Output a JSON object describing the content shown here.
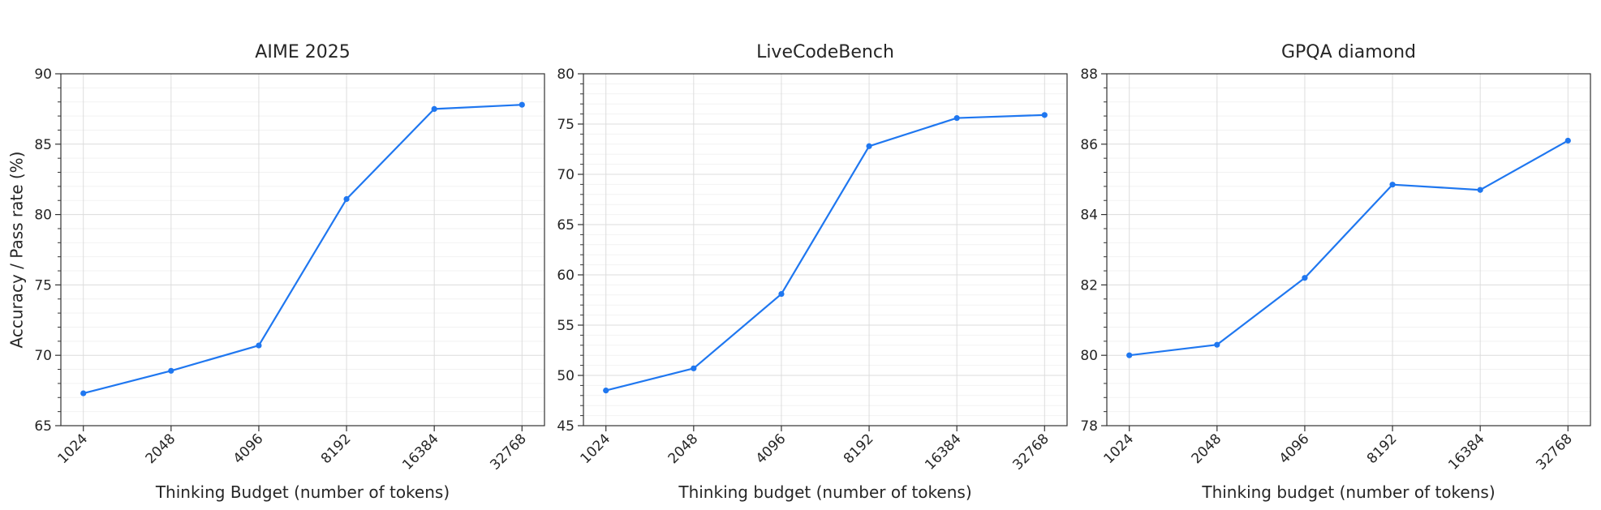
{
  "chart_data": [
    {
      "type": "line",
      "title": "AIME 2025",
      "xlabel": "Thinking Budget (number of tokens)",
      "ylabel": "Accuracy / Pass rate (%)",
      "categories": [
        "1024",
        "2048",
        "4096",
        "8192",
        "16384",
        "32768"
      ],
      "values": [
        67.3,
        68.9,
        70.7,
        81.1,
        87.5,
        87.8
      ],
      "ylim": [
        65,
        90
      ],
      "yticks": [
        "65",
        "70",
        "75",
        "80",
        "85",
        "90"
      ],
      "grid": true,
      "color": "#1f77f0"
    },
    {
      "type": "line",
      "title": "LiveCodeBench",
      "xlabel": "Thinking budget (number of tokens)",
      "ylabel": "",
      "categories": [
        "1024",
        "2048",
        "4096",
        "8192",
        "16384",
        "32768"
      ],
      "values": [
        48.5,
        50.7,
        58.1,
        72.8,
        75.6,
        75.9
      ],
      "ylim": [
        45,
        80
      ],
      "yticks": [
        "45",
        "50",
        "55",
        "60",
        "65",
        "70",
        "75",
        "80"
      ],
      "grid": true,
      "color": "#1f77f0"
    },
    {
      "type": "line",
      "title": "GPQA diamond",
      "xlabel": "Thinking budget (number of tokens)",
      "ylabel": "",
      "categories": [
        "1024",
        "2048",
        "4096",
        "8192",
        "16384",
        "32768"
      ],
      "values": [
        80.0,
        80.3,
        82.2,
        84.85,
        84.7,
        86.1
      ],
      "ylim": [
        78,
        88
      ],
      "yticks": [
        "78",
        "80",
        "82",
        "84",
        "86",
        "88"
      ],
      "grid": true,
      "color": "#1f77f0"
    }
  ]
}
